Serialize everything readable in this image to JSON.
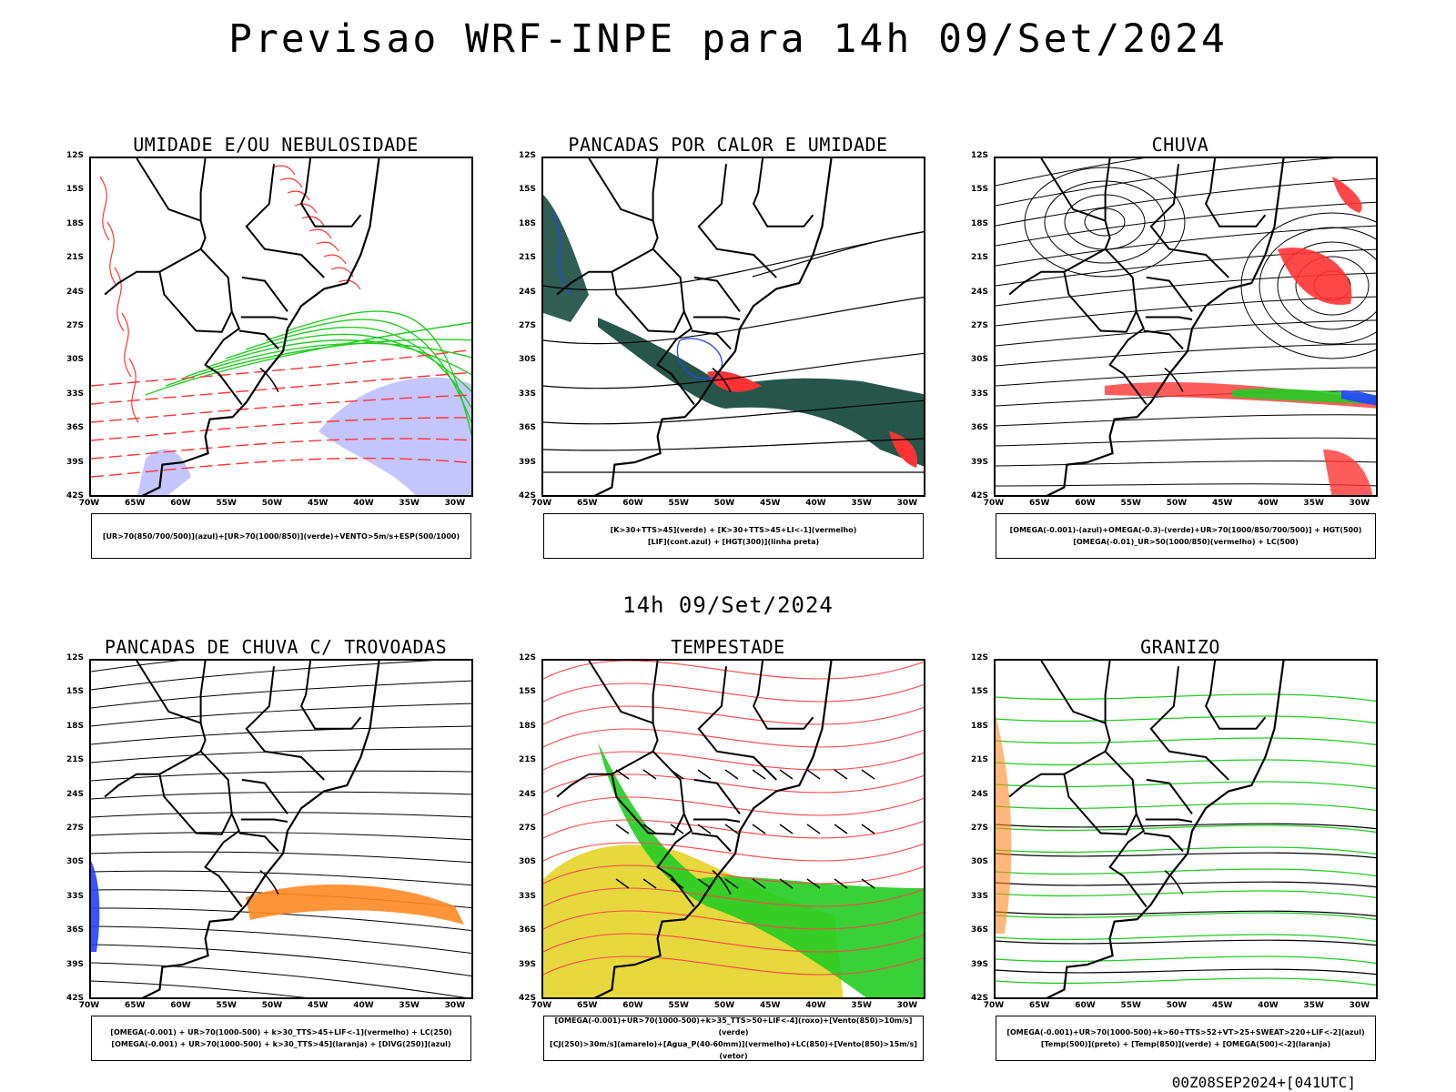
{
  "title": "Previsao WRF-INPE  para 14h 09/Set/2024",
  "subtitle_date": "14h 09/Set/2024",
  "footer": "00Z08SEP2024+[041UTC]",
  "lat_labels": [
    "12S",
    "15S",
    "18S",
    "21S",
    "24S",
    "27S",
    "30S",
    "33S",
    "36S",
    "39S",
    "42S"
  ],
  "lon_labels": [
    "70W",
    "65W",
    "60W",
    "55W",
    "50W",
    "45W",
    "40W",
    "35W",
    "30W"
  ],
  "panels": [
    {
      "id": "umidade",
      "title": "UMIDADE E/OU NEBULOSIDADE",
      "legend": [
        "[UR>70(850/700/500)](azul)+[UR>70(1000/850)](verde)+VENTO>5m/s+ESP(500/1000)"
      ],
      "colors": {
        "humidity_upper": "#8b8bff",
        "humidity_lower": "#22cc22",
        "thickness": "#ff3333",
        "pressure": "#000000"
      }
    },
    {
      "id": "pancadas-calor",
      "title": "PANCADAS POR CALOR E UMIDADE",
      "legend": [
        "[K>30+TTS>45](verde) + [K>30+TTS>45+LI<-1](vermelho)",
        "[LIF](cont.azul) + [HGT(300)](linha preta)"
      ],
      "colors": {
        "green": "#1a4d40",
        "red": "#ff3333",
        "lif": "#2244ff"
      }
    },
    {
      "id": "chuva",
      "title": "CHUVA",
      "legend": [
        "[OMEGA(-0.001)-(azul)+OMEGA(-0.3)-(verde)+UR>70(1000/850/700/500)] + HGT(500)",
        "[OMEGA(-0.01)_UR>50(1000/850)(vermelho) + LC(500)"
      ],
      "colors": {
        "red": "#ff3333",
        "green": "#22cc22",
        "blue": "#2244ff"
      }
    },
    {
      "id": "pancadas-trovoadas",
      "title": "PANCADAS DE CHUVA C/ TROVOADAS",
      "legend": [
        "[OMEGA(-0.001) + UR>70(1000-500) + k>30_TTS>45+LIF<-1](vermelho) + LC(250)",
        "[OMEGA(-0.001) + UR>70(1000-500) + k>30_TTS>45](laranja) + [DIVG(250)](azul)"
      ],
      "colors": {
        "orange": "#ff8822",
        "blue": "#2244ff"
      }
    },
    {
      "id": "tempestade",
      "title": "TEMPESTADE",
      "legend": [
        "[OMEGA(-0.001)+UR>70(1000-500)+k>35_TTS>50+LIF<-4](roxo)+[Vento(850)>10m/s](verde)",
        "[CJ(250)>30m/s](amarelo)+[Agua_P(40-60mm)](vermelho)+LC(850)+[Vento(850)>15m/s](vetor)"
      ],
      "colors": {
        "yellow": "#e6d633",
        "green": "#22cc22",
        "red": "#ff4444"
      }
    },
    {
      "id": "granizo",
      "title": "GRANIZO",
      "legend": [
        "[OMEGA(-0.001)+UR>70(1000-500)+k>60+TTS>52+VT>25+SWEAT>220+LIF<-2](azul)",
        "[Temp(500)](preto) + [Temp(850)](verde) + [OMEGA(500)<-2](laranja)"
      ],
      "colors": {
        "green": "#22cc22",
        "orange": "#ff8822"
      }
    }
  ]
}
